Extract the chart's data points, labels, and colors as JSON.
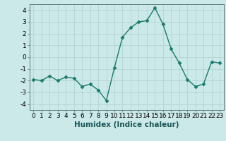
{
  "x": [
    0,
    1,
    2,
    3,
    4,
    5,
    6,
    7,
    8,
    9,
    10,
    11,
    12,
    13,
    14,
    15,
    16,
    17,
    18,
    19,
    20,
    21,
    22,
    23
  ],
  "y": [
    -1.9,
    -2.0,
    -1.6,
    -2.0,
    -1.7,
    -1.8,
    -2.5,
    -2.3,
    -2.8,
    -3.7,
    -0.9,
    1.7,
    2.5,
    3.0,
    3.1,
    4.2,
    2.8,
    0.7,
    -0.5,
    -1.9,
    -2.5,
    -2.3,
    -0.4,
    -0.5
  ],
  "line_color": "#1a7a6a",
  "marker": "D",
  "markersize": 2.5,
  "linewidth": 1.0,
  "background_color": "#cce9e9",
  "grid_color": "#b0d0d0",
  "xlabel": "Humidex (Indice chaleur)",
  "ylim": [
    -4.5,
    4.5
  ],
  "xlim": [
    -0.5,
    23.5
  ],
  "yticks": [
    -4,
    -3,
    -2,
    -1,
    0,
    1,
    2,
    3,
    4
  ],
  "xticks": [
    0,
    1,
    2,
    3,
    4,
    5,
    6,
    7,
    8,
    9,
    10,
    11,
    12,
    13,
    14,
    15,
    16,
    17,
    18,
    19,
    20,
    21,
    22,
    23
  ],
  "xlabel_fontsize": 7.5,
  "tick_fontsize": 6.5
}
